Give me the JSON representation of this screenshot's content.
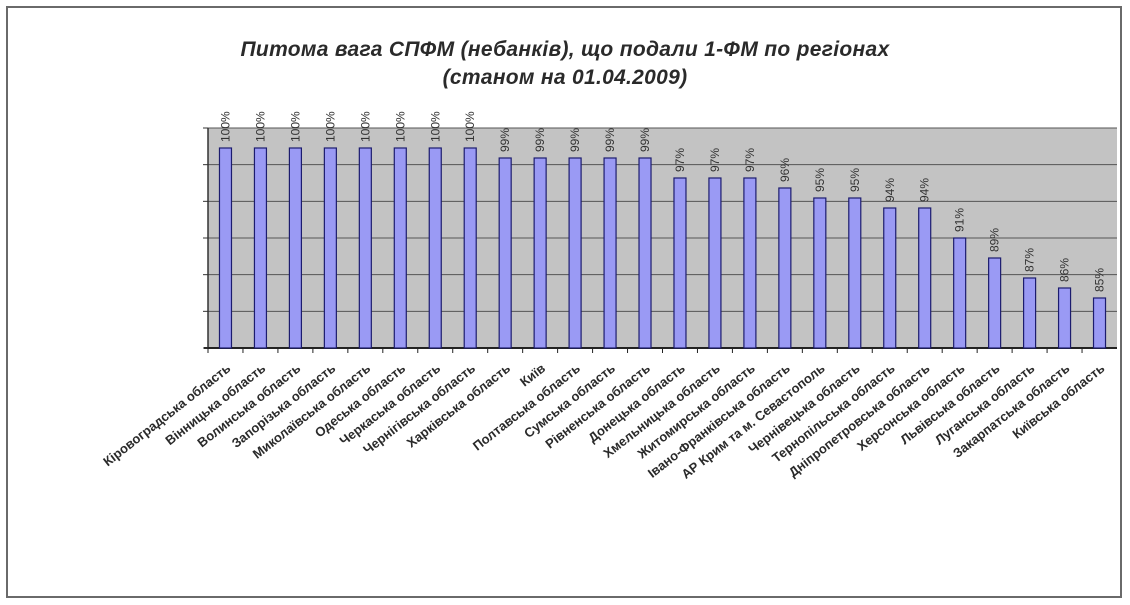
{
  "chart_data": {
    "type": "bar",
    "title": "Питома вага СПФМ (небанків), що подали 1-ФМ по регіонах",
    "subtitle": "(станом на 01.04.2009)",
    "categories": [
      "Кіровоградська область",
      "Вінницька область",
      "Волинська область",
      "Запорізька область",
      "Миколаївська область",
      "Одеська область",
      "Черкаська область",
      "Чернігівська область",
      "Харківська область",
      "Київ",
      "Полтавська область",
      "Сумська область",
      "Рівненська область",
      "Донецька область",
      "Хмельницька область",
      "Житомирська область",
      "Івано-Франківська область",
      "АР Крим та м. Севастополь",
      "Чернівецька область",
      "Тернопільська область",
      "Дніпропетровська область",
      "Херсонська область",
      "Львівська область",
      "Луганська область",
      "Закарпатська область",
      "Київська область"
    ],
    "values": [
      100,
      100,
      100,
      100,
      100,
      100,
      100,
      100,
      99,
      99,
      99,
      99,
      99,
      97,
      97,
      97,
      96,
      95,
      95,
      94,
      94,
      91,
      89,
      87,
      86,
      85
    ],
    "labels": [
      "100%",
      "100%",
      "100%",
      "100%",
      "100%",
      "100%",
      "100%",
      "100%",
      "99%",
      "99%",
      "99%",
      "99%",
      "99%",
      "97%",
      "97%",
      "97%",
      "96%",
      "95%",
      "95%",
      "94%",
      "94%",
      "91%",
      "89%",
      "87%",
      "86%",
      "85%"
    ],
    "ylim": [
      80,
      102
    ],
    "grid": true,
    "colors": {
      "bar": "#9a9af4",
      "bar_stroke": "#1c1c6e",
      "plot_bg": "#c3c3c3",
      "grid": "#555555"
    }
  }
}
